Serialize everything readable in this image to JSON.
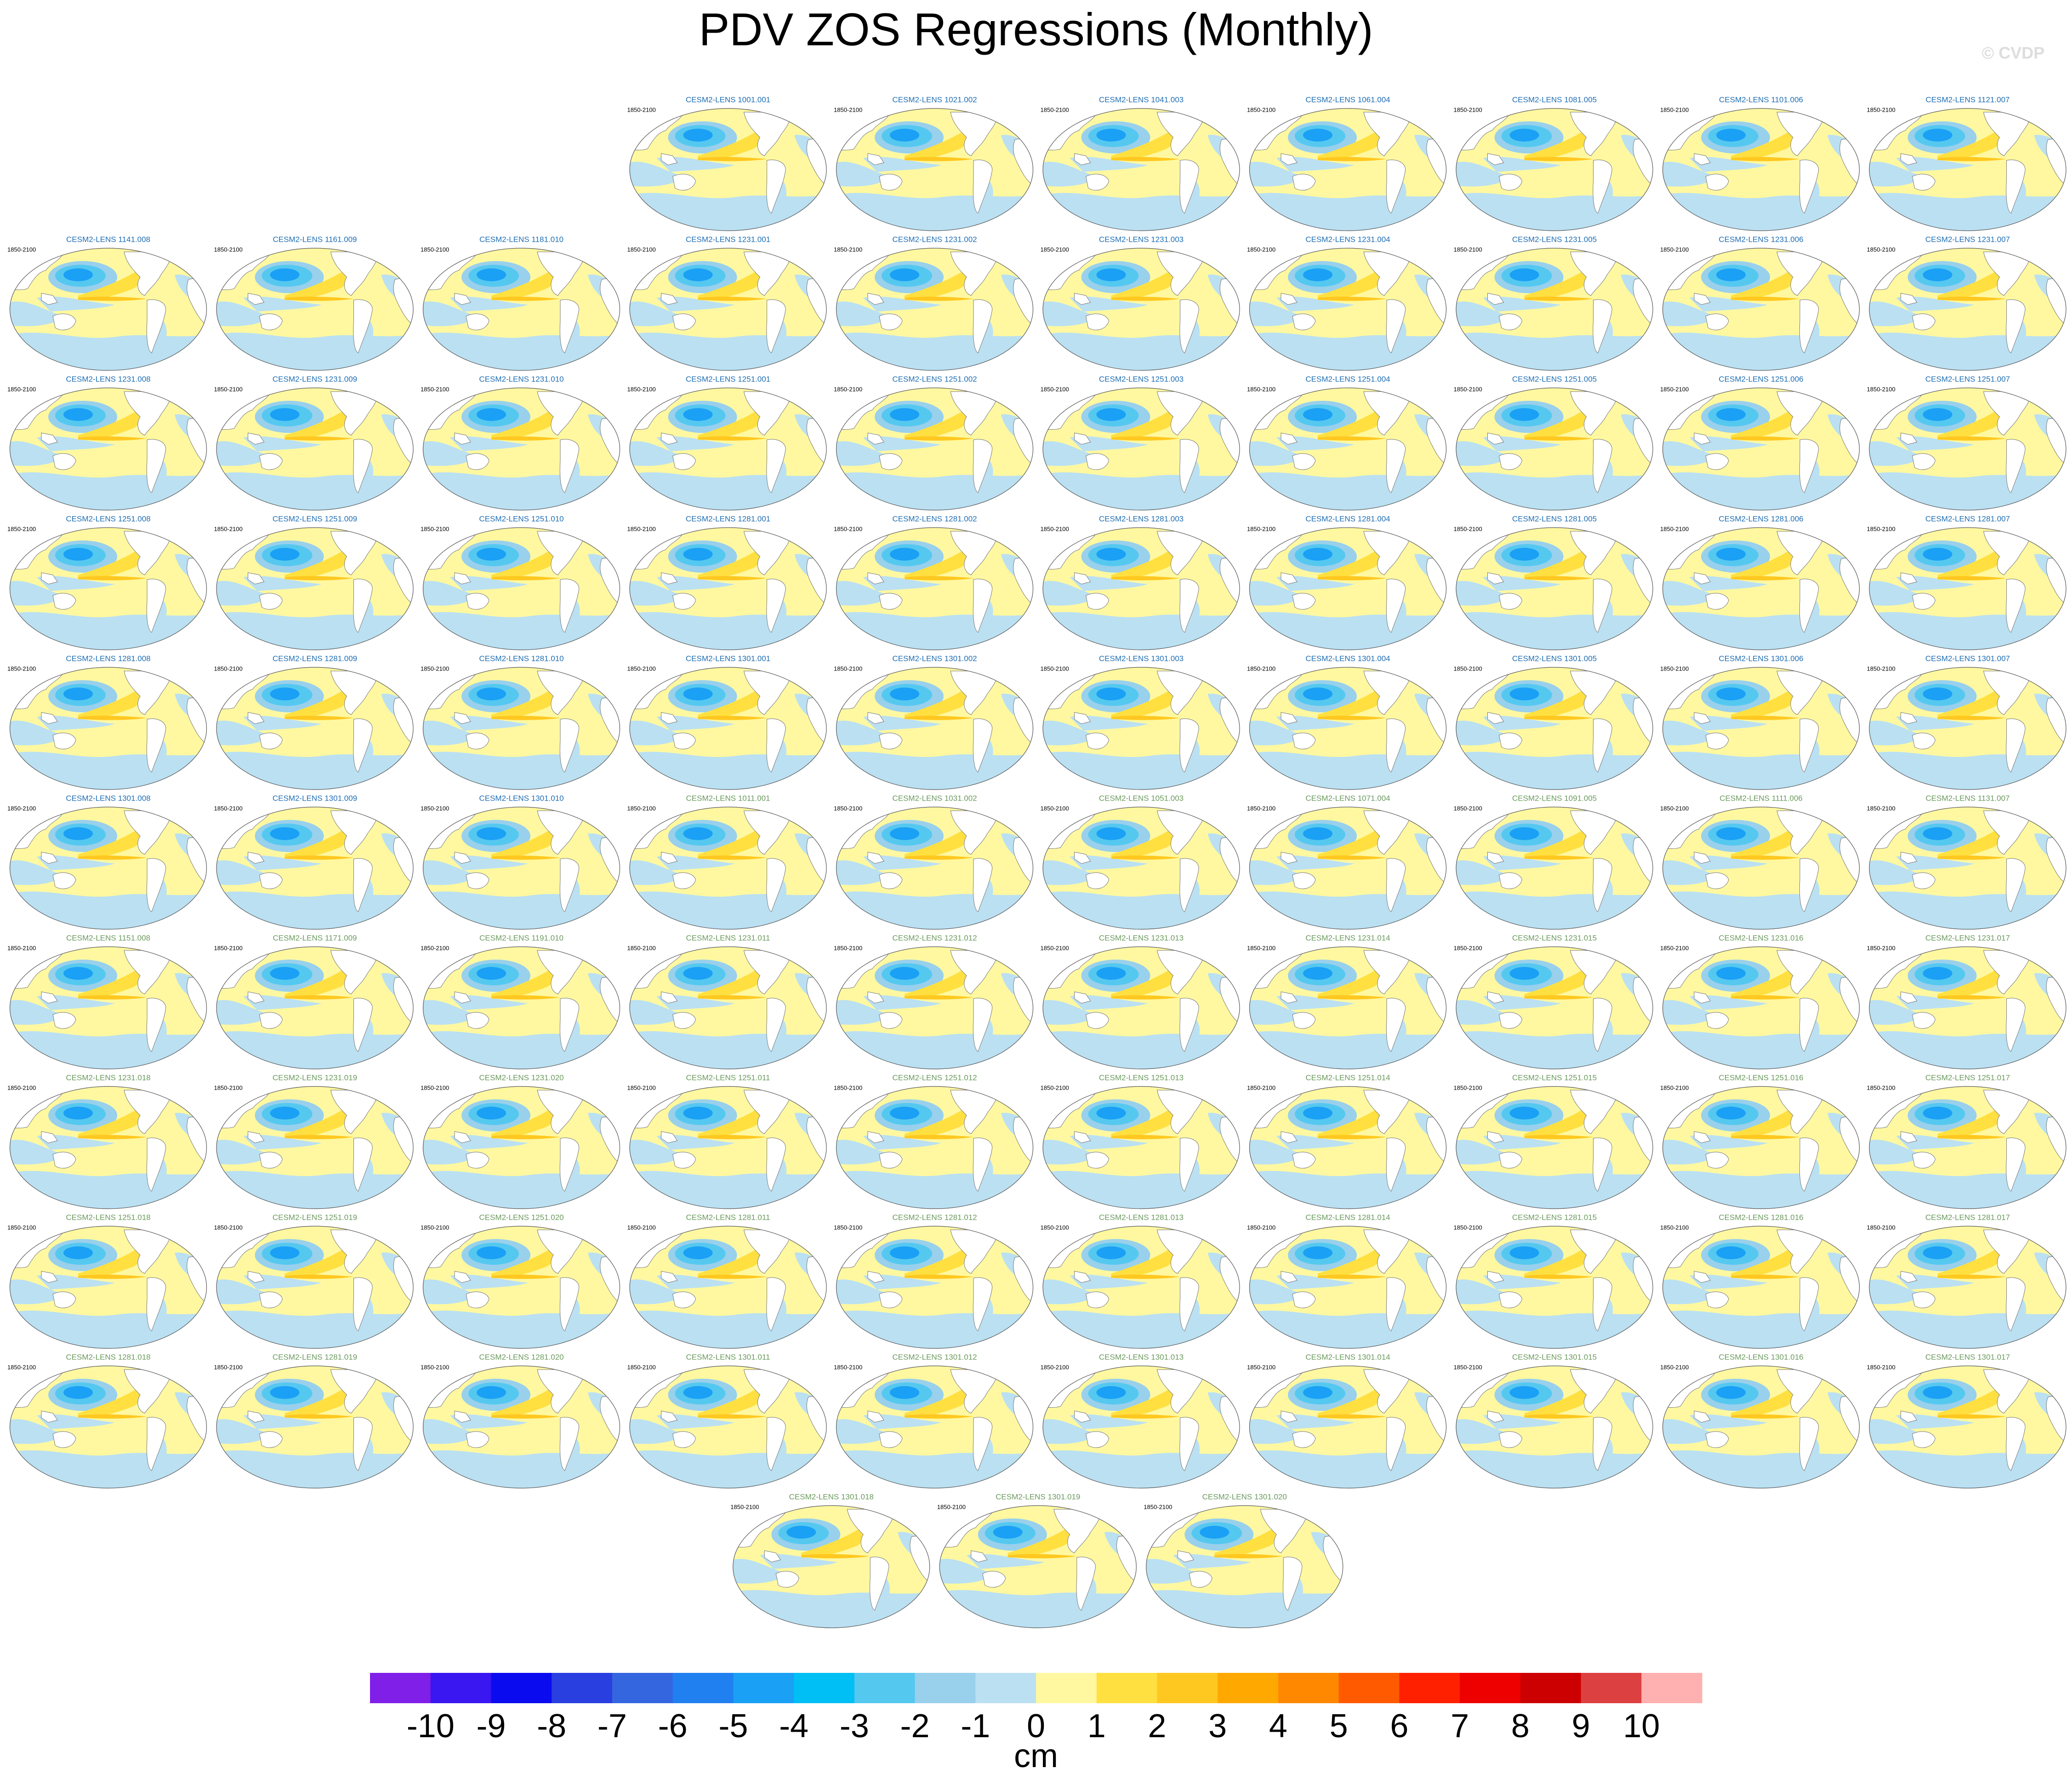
{
  "title": "PDV ZOS Regressions (Monthly)",
  "watermark": "© CVDP",
  "panel_rows": [
    [
      {
        "title": "CESM2-LENS 1001.001",
        "period": "1850-2100",
        "title_color": "#1f6eb4"
      },
      {
        "title": "CESM2-LENS 1021.002",
        "period": "1850-2100",
        "title_color": "#1f6eb4"
      },
      {
        "title": "CESM2-LENS 1041.003",
        "period": "1850-2100",
        "title_color": "#1f6eb4"
      },
      {
        "title": "CESM2-LENS 1061.004",
        "period": "1850-2100",
        "title_color": "#1f6eb4"
      },
      {
        "title": "CESM2-LENS 1081.005",
        "period": "1850-2100",
        "title_color": "#1f6eb4"
      },
      {
        "title": "CESM2-LENS 1101.006",
        "period": "1850-2100",
        "title_color": "#1f6eb4"
      },
      {
        "title": "CESM2-LENS 1121.007",
        "period": "1850-2100",
        "title_color": "#1f6eb4"
      }
    ],
    [
      {
        "title": "CESM2-LENS 1141.008",
        "period": "1850-2100",
        "title_color": "#1f6eb4"
      },
      {
        "title": "CESM2-LENS 1161.009",
        "period": "1850-2100",
        "title_color": "#1f6eb4"
      },
      {
        "title": "CESM2-LENS 1181.010",
        "period": "1850-2100",
        "title_color": "#1f6eb4"
      },
      {
        "title": "CESM2-LENS 1231.001",
        "period": "1850-2100",
        "title_color": "#1f6eb4"
      },
      {
        "title": "CESM2-LENS 1231.002",
        "period": "1850-2100",
        "title_color": "#1f6eb4"
      },
      {
        "title": "CESM2-LENS 1231.003",
        "period": "1850-2100",
        "title_color": "#1f6eb4"
      },
      {
        "title": "CESM2-LENS 1231.004",
        "period": "1850-2100",
        "title_color": "#1f6eb4"
      },
      {
        "title": "CESM2-LENS 1231.005",
        "period": "1850-2100",
        "title_color": "#1f6eb4"
      },
      {
        "title": "CESM2-LENS 1231.006",
        "period": "1850-2100",
        "title_color": "#1f6eb4"
      },
      {
        "title": "CESM2-LENS 1231.007",
        "period": "1850-2100",
        "title_color": "#1f6eb4"
      }
    ],
    [
      {
        "title": "CESM2-LENS 1231.008",
        "period": "1850-2100",
        "title_color": "#1f6eb4"
      },
      {
        "title": "CESM2-LENS 1231.009",
        "period": "1850-2100",
        "title_color": "#1f6eb4"
      },
      {
        "title": "CESM2-LENS 1231.010",
        "period": "1850-2100",
        "title_color": "#1f6eb4"
      },
      {
        "title": "CESM2-LENS 1251.001",
        "period": "1850-2100",
        "title_color": "#1f6eb4"
      },
      {
        "title": "CESM2-LENS 1251.002",
        "period": "1850-2100",
        "title_color": "#1f6eb4"
      },
      {
        "title": "CESM2-LENS 1251.003",
        "period": "1850-2100",
        "title_color": "#1f6eb4"
      },
      {
        "title": "CESM2-LENS 1251.004",
        "period": "1850-2100",
        "title_color": "#1f6eb4"
      },
      {
        "title": "CESM2-LENS 1251.005",
        "period": "1850-2100",
        "title_color": "#1f6eb4"
      },
      {
        "title": "CESM2-LENS 1251.006",
        "period": "1850-2100",
        "title_color": "#1f6eb4"
      },
      {
        "title": "CESM2-LENS 1251.007",
        "period": "1850-2100",
        "title_color": "#1f6eb4"
      }
    ],
    [
      {
        "title": "CESM2-LENS 1251.008",
        "period": "1850-2100",
        "title_color": "#1f6eb4"
      },
      {
        "title": "CESM2-LENS 1251.009",
        "period": "1850-2100",
        "title_color": "#1f6eb4"
      },
      {
        "title": "CESM2-LENS 1251.010",
        "period": "1850-2100",
        "title_color": "#1f6eb4"
      },
      {
        "title": "CESM2-LENS 1281.001",
        "period": "1850-2100",
        "title_color": "#1f6eb4"
      },
      {
        "title": "CESM2-LENS 1281.002",
        "period": "1850-2100",
        "title_color": "#1f6eb4"
      },
      {
        "title": "CESM2-LENS 1281.003",
        "period": "1850-2100",
        "title_color": "#1f6eb4"
      },
      {
        "title": "CESM2-LENS 1281.004",
        "period": "1850-2100",
        "title_color": "#1f6eb4"
      },
      {
        "title": "CESM2-LENS 1281.005",
        "period": "1850-2100",
        "title_color": "#1f6eb4"
      },
      {
        "title": "CESM2-LENS 1281.006",
        "period": "1850-2100",
        "title_color": "#1f6eb4"
      },
      {
        "title": "CESM2-LENS 1281.007",
        "period": "1850-2100",
        "title_color": "#1f6eb4"
      }
    ],
    [
      {
        "title": "CESM2-LENS 1281.008",
        "period": "1850-2100",
        "title_color": "#1f6eb4"
      },
      {
        "title": "CESM2-LENS 1281.009",
        "period": "1850-2100",
        "title_color": "#1f6eb4"
      },
      {
        "title": "CESM2-LENS 1281.010",
        "period": "1850-2100",
        "title_color": "#1f6eb4"
      },
      {
        "title": "CESM2-LENS 1301.001",
        "period": "1850-2100",
        "title_color": "#1f6eb4"
      },
      {
        "title": "CESM2-LENS 1301.002",
        "period": "1850-2100",
        "title_color": "#1f6eb4"
      },
      {
        "title": "CESM2-LENS 1301.003",
        "period": "1850-2100",
        "title_color": "#1f6eb4"
      },
      {
        "title": "CESM2-LENS 1301.004",
        "period": "1850-2100",
        "title_color": "#1f6eb4"
      },
      {
        "title": "CESM2-LENS 1301.005",
        "period": "1850-2100",
        "title_color": "#1f6eb4"
      },
      {
        "title": "CESM2-LENS 1301.006",
        "period": "1850-2100",
        "title_color": "#1f6eb4"
      },
      {
        "title": "CESM2-LENS 1301.007",
        "period": "1850-2100",
        "title_color": "#1f6eb4"
      }
    ],
    [
      {
        "title": "CESM2-LENS 1301.008",
        "period": "1850-2100",
        "title_color": "#1f6eb4"
      },
      {
        "title": "CESM2-LENS 1301.009",
        "period": "1850-2100",
        "title_color": "#1f6eb4"
      },
      {
        "title": "CESM2-LENS 1301.010",
        "period": "1850-2100",
        "title_color": "#1f6eb4"
      },
      {
        "title": "CESM2-LENS 1011.001",
        "period": "1850-2100",
        "title_color": "#6b9a5e"
      },
      {
        "title": "CESM2-LENS 1031.002",
        "period": "1850-2100",
        "title_color": "#6b9a5e"
      },
      {
        "title": "CESM2-LENS 1051.003",
        "period": "1850-2100",
        "title_color": "#6b9a5e"
      },
      {
        "title": "CESM2-LENS 1071.004",
        "period": "1850-2100",
        "title_color": "#6b9a5e"
      },
      {
        "title": "CESM2-LENS 1091.005",
        "period": "1850-2100",
        "title_color": "#6b9a5e"
      },
      {
        "title": "CESM2-LENS 1111.006",
        "period": "1850-2100",
        "title_color": "#6b9a5e"
      },
      {
        "title": "CESM2-LENS 1131.007",
        "period": "1850-2100",
        "title_color": "#6b9a5e"
      }
    ],
    [
      {
        "title": "CESM2-LENS 1151.008",
        "period": "1850-2100",
        "title_color": "#6b9a5e"
      },
      {
        "title": "CESM2-LENS 1171.009",
        "period": "1850-2100",
        "title_color": "#6b9a5e"
      },
      {
        "title": "CESM2-LENS 1191.010",
        "period": "1850-2100",
        "title_color": "#6b9a5e"
      },
      {
        "title": "CESM2-LENS 1231.011",
        "period": "1850-2100",
        "title_color": "#6b9a5e"
      },
      {
        "title": "CESM2-LENS 1231.012",
        "period": "1850-2100",
        "title_color": "#6b9a5e"
      },
      {
        "title": "CESM2-LENS 1231.013",
        "period": "1850-2100",
        "title_color": "#6b9a5e"
      },
      {
        "title": "CESM2-LENS 1231.014",
        "period": "1850-2100",
        "title_color": "#6b9a5e"
      },
      {
        "title": "CESM2-LENS 1231.015",
        "period": "1850-2100",
        "title_color": "#6b9a5e"
      },
      {
        "title": "CESM2-LENS 1231.016",
        "period": "1850-2100",
        "title_color": "#6b9a5e"
      },
      {
        "title": "CESM2-LENS 1231.017",
        "period": "1850-2100",
        "title_color": "#6b9a5e"
      }
    ],
    [
      {
        "title": "CESM2-LENS 1231.018",
        "period": "1850-2100",
        "title_color": "#6b9a5e"
      },
      {
        "title": "CESM2-LENS 1231.019",
        "period": "1850-2100",
        "title_color": "#6b9a5e"
      },
      {
        "title": "CESM2-LENS 1231.020",
        "period": "1850-2100",
        "title_color": "#6b9a5e"
      },
      {
        "title": "CESM2-LENS 1251.011",
        "period": "1850-2100",
        "title_color": "#6b9a5e"
      },
      {
        "title": "CESM2-LENS 1251.012",
        "period": "1850-2100",
        "title_color": "#6b9a5e"
      },
      {
        "title": "CESM2-LENS 1251.013",
        "period": "1850-2100",
        "title_color": "#6b9a5e"
      },
      {
        "title": "CESM2-LENS 1251.014",
        "period": "1850-2100",
        "title_color": "#6b9a5e"
      },
      {
        "title": "CESM2-LENS 1251.015",
        "period": "1850-2100",
        "title_color": "#6b9a5e"
      },
      {
        "title": "CESM2-LENS 1251.016",
        "period": "1850-2100",
        "title_color": "#6b9a5e"
      },
      {
        "title": "CESM2-LENS 1251.017",
        "period": "1850-2100",
        "title_color": "#6b9a5e"
      }
    ],
    [
      {
        "title": "CESM2-LENS 1251.018",
        "period": "1850-2100",
        "title_color": "#6b9a5e"
      },
      {
        "title": "CESM2-LENS 1251.019",
        "period": "1850-2100",
        "title_color": "#6b9a5e"
      },
      {
        "title": "CESM2-LENS 1251.020",
        "period": "1850-2100",
        "title_color": "#6b9a5e"
      },
      {
        "title": "CESM2-LENS 1281.011",
        "period": "1850-2100",
        "title_color": "#6b9a5e"
      },
      {
        "title": "CESM2-LENS 1281.012",
        "period": "1850-2100",
        "title_color": "#6b9a5e"
      },
      {
        "title": "CESM2-LENS 1281.013",
        "period": "1850-2100",
        "title_color": "#6b9a5e"
      },
      {
        "title": "CESM2-LENS 1281.014",
        "period": "1850-2100",
        "title_color": "#6b9a5e"
      },
      {
        "title": "CESM2-LENS 1281.015",
        "period": "1850-2100",
        "title_color": "#6b9a5e"
      },
      {
        "title": "CESM2-LENS 1281.016",
        "period": "1850-2100",
        "title_color": "#6b9a5e"
      },
      {
        "title": "CESM2-LENS 1281.017",
        "period": "1850-2100",
        "title_color": "#6b9a5e"
      }
    ],
    [
      {
        "title": "CESM2-LENS 1281.018",
        "period": "1850-2100",
        "title_color": "#6b9a5e"
      },
      {
        "title": "CESM2-LENS 1281.019",
        "period": "1850-2100",
        "title_color": "#6b9a5e"
      },
      {
        "title": "CESM2-LENS 1281.020",
        "period": "1850-2100",
        "title_color": "#6b9a5e"
      },
      {
        "title": "CESM2-LENS 1301.011",
        "period": "1850-2100",
        "title_color": "#6b9a5e"
      },
      {
        "title": "CESM2-LENS 1301.012",
        "period": "1850-2100",
        "title_color": "#6b9a5e"
      },
      {
        "title": "CESM2-LENS 1301.013",
        "period": "1850-2100",
        "title_color": "#6b9a5e"
      },
      {
        "title": "CESM2-LENS 1301.014",
        "period": "1850-2100",
        "title_color": "#6b9a5e"
      },
      {
        "title": "CESM2-LENS 1301.015",
        "period": "1850-2100",
        "title_color": "#6b9a5e"
      },
      {
        "title": "CESM2-LENS 1301.016",
        "period": "1850-2100",
        "title_color": "#6b9a5e"
      },
      {
        "title": "CESM2-LENS 1301.017",
        "period": "1850-2100",
        "title_color": "#6b9a5e"
      }
    ],
    [
      {
        "title": "CESM2-LENS 1301.018",
        "period": "1850-2100",
        "title_color": "#6b9a5e"
      },
      {
        "title": "CESM2-LENS 1301.019",
        "period": "1850-2100",
        "title_color": "#6b9a5e"
      },
      {
        "title": "CESM2-LENS 1301.020",
        "period": "1850-2100",
        "title_color": "#6b9a5e"
      }
    ]
  ],
  "colorbar": {
    "levels": [
      -10,
      -9,
      -8,
      -7,
      -6,
      -5,
      -4,
      -3,
      -2,
      -1,
      0,
      1,
      2,
      3,
      4,
      5,
      6,
      7,
      8,
      9,
      10
    ],
    "colors": [
      "#7f1fe8",
      "#3a16f0",
      "#0b0bef",
      "#2a3fe0",
      "#3466e0",
      "#2080f0",
      "#1aa0f5",
      "#00bff5",
      "#55c8f0",
      "#99d0ec",
      "#bae0f2",
      "#fff8a0",
      "#ffe040",
      "#ffc820",
      "#ffa800",
      "#ff8800",
      "#ff5a00",
      "#ff2000",
      "#ee0000",
      "#cc0000",
      "#dd4040",
      "#ffb0b0"
    ],
    "label": "cm"
  }
}
